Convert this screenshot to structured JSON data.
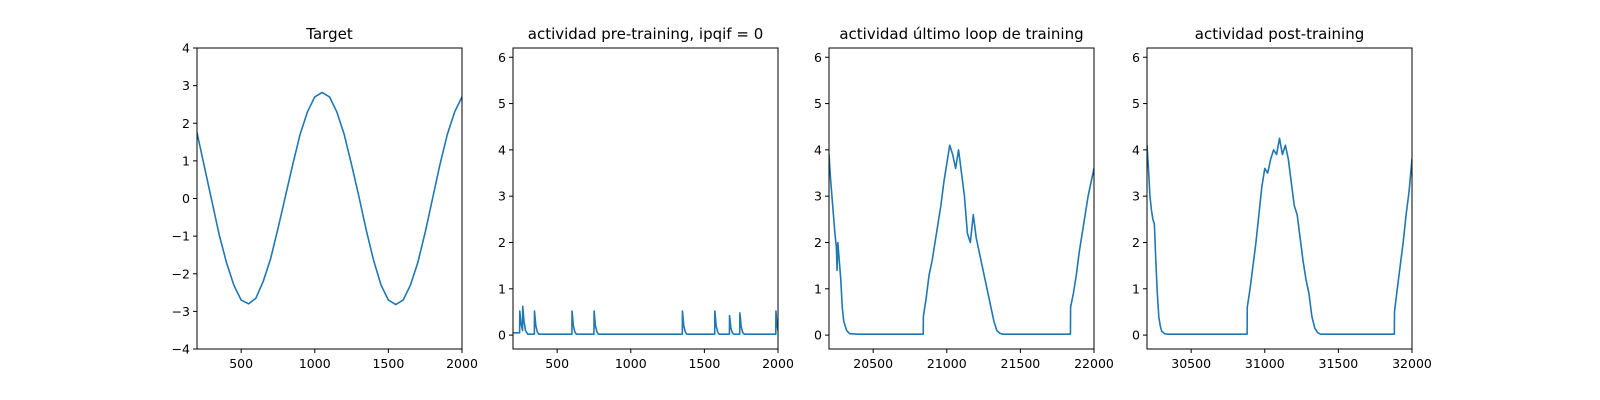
{
  "figure": {
    "line_color": "#1f77b4"
  },
  "chart_data": [
    {
      "type": "line",
      "title": "Target",
      "xlim": [
        200,
        2000
      ],
      "ylim": [
        -4,
        4
      ],
      "xticks": [
        500,
        1000,
        1500,
        2000
      ],
      "xtick_labels": [
        "500",
        "1000",
        "1500",
        "2000"
      ],
      "yticks": [
        -4,
        -3,
        -2,
        -1,
        0,
        1,
        2,
        3,
        4
      ],
      "ytick_labels": [
        "−4",
        "−3",
        "−2",
        "−1",
        "0",
        "1",
        "2",
        "3",
        "4"
      ],
      "series": [
        {
          "x": [
            200,
            250,
            300,
            350,
            400,
            450,
            500,
            550,
            600,
            650,
            700,
            750,
            800,
            850,
            900,
            950,
            1000,
            1050,
            1100,
            1150,
            1200,
            1250,
            1300,
            1350,
            1400,
            1450,
            1500,
            1550,
            1600,
            1650,
            1700,
            1750,
            1800,
            1850,
            1900,
            1950,
            2000
          ],
          "y": [
            1.75,
            0.85,
            -0.05,
            -0.95,
            -1.7,
            -2.3,
            -2.7,
            -2.8,
            -2.65,
            -2.2,
            -1.6,
            -0.8,
            0.05,
            0.9,
            1.7,
            2.3,
            2.7,
            2.82,
            2.7,
            2.3,
            1.7,
            0.9,
            0.05,
            -0.85,
            -1.65,
            -2.3,
            -2.7,
            -2.82,
            -2.7,
            -2.3,
            -1.7,
            -0.9,
            0.0,
            0.9,
            1.7,
            2.3,
            2.7
          ]
        }
      ]
    },
    {
      "type": "line",
      "title": "actividad pre-training, ipqif = 0",
      "xlim": [
        200,
        2000
      ],
      "ylim": [
        -0.3,
        6.2
      ],
      "xticks": [
        500,
        1000,
        1500,
        2000
      ],
      "xtick_labels": [
        "500",
        "1000",
        "1500",
        "2000"
      ],
      "yticks": [
        0,
        1,
        2,
        3,
        4,
        5,
        6
      ],
      "ytick_labels": [
        "0",
        "1",
        "2",
        "3",
        "4",
        "5",
        "6"
      ],
      "series": [
        {
          "x": [
            200,
            245,
            246,
            255,
            265,
            266,
            275,
            285,
            300,
            345,
            346,
            355,
            365,
            375,
            600,
            601,
            610,
            620,
            630,
            750,
            751,
            760,
            770,
            780,
            1350,
            1351,
            1360,
            1370,
            1380,
            1570,
            1571,
            1580,
            1590,
            1600,
            1670,
            1671,
            1680,
            1690,
            1700,
            1740,
            1741,
            1750,
            1760,
            1770,
            1985,
            1986,
            1992,
            2000
          ],
          "y": [
            0.05,
            0.05,
            0.52,
            0.25,
            0.1,
            0.62,
            0.3,
            0.1,
            0.02,
            0.02,
            0.52,
            0.2,
            0.07,
            0.02,
            0.02,
            0.52,
            0.2,
            0.07,
            0.02,
            0.02,
            0.52,
            0.2,
            0.07,
            0.02,
            0.02,
            0.52,
            0.2,
            0.07,
            0.02,
            0.02,
            0.52,
            0.2,
            0.07,
            0.02,
            0.02,
            0.42,
            0.15,
            0.05,
            0.02,
            0.02,
            0.48,
            0.18,
            0.06,
            0.02,
            0.02,
            0.52,
            0.25,
            0.1
          ]
        }
      ]
    },
    {
      "type": "line",
      "title": "actividad último loop de training",
      "xlim": [
        20200,
        22000
      ],
      "ylim": [
        -0.3,
        6.2
      ],
      "xticks": [
        20500,
        21000,
        21500,
        22000
      ],
      "xtick_labels": [
        "20500",
        "21000",
        "21500",
        "22000"
      ],
      "yticks": [
        0,
        1,
        2,
        3,
        4,
        5,
        6
      ],
      "ytick_labels": [
        "0",
        "1",
        "2",
        "3",
        "4",
        "5",
        "6"
      ],
      "series": [
        {
          "x": [
            20200,
            20210,
            20220,
            20230,
            20240,
            20250,
            20255,
            20260,
            20270,
            20280,
            20290,
            20300,
            20320,
            20340,
            20400,
            20840,
            20841,
            20860,
            20880,
            20900,
            20920,
            20940,
            20960,
            20980,
            21000,
            21020,
            21040,
            21060,
            21080,
            21100,
            21120,
            21140,
            21160,
            21180,
            21200,
            21220,
            21240,
            21260,
            21280,
            21300,
            21320,
            21340,
            21360,
            21380,
            21420,
            21840,
            21841,
            21860,
            21880,
            21900,
            21920,
            21940,
            21960,
            21980,
            22000
          ],
          "y": [
            3.9,
            3.4,
            3.0,
            2.6,
            2.2,
            1.9,
            1.4,
            2.0,
            1.6,
            1.2,
            0.6,
            0.3,
            0.1,
            0.03,
            0.02,
            0.02,
            0.4,
            0.8,
            1.3,
            1.6,
            2.0,
            2.4,
            2.8,
            3.3,
            3.7,
            4.1,
            3.9,
            3.6,
            4.0,
            3.5,
            3.0,
            2.2,
            2.0,
            2.6,
            2.1,
            1.8,
            1.5,
            1.2,
            0.9,
            0.6,
            0.3,
            0.1,
            0.04,
            0.02,
            0.02,
            0.02,
            0.6,
            0.9,
            1.3,
            1.8,
            2.2,
            2.6,
            3.0,
            3.3,
            3.6
          ]
        }
      ]
    },
    {
      "type": "line",
      "title": "actividad post-training",
      "xlim": [
        30200,
        32000
      ],
      "ylim": [
        -0.3,
        6.2
      ],
      "xticks": [
        30500,
        31000,
        31500,
        32000
      ],
      "xtick_labels": [
        "30500",
        "31000",
        "31500",
        "32000"
      ],
      "yticks": [
        0,
        1,
        2,
        3,
        4,
        5,
        6
      ],
      "ytick_labels": [
        "0",
        "1",
        "2",
        "3",
        "4",
        "5",
        "6"
      ],
      "series": [
        {
          "x": [
            30200,
            30210,
            30220,
            30230,
            30240,
            30250,
            30260,
            30270,
            30280,
            30290,
            30300,
            30320,
            30340,
            30400,
            30880,
            30881,
            30900,
            30920,
            30940,
            30960,
            30980,
            31000,
            31020,
            31040,
            31060,
            31080,
            31100,
            31120,
            31140,
            31160,
            31180,
            31200,
            31220,
            31240,
            31260,
            31280,
            31300,
            31320,
            31340,
            31360,
            31380,
            31420,
            31880,
            31881,
            31900,
            31920,
            31940,
            31960,
            31980,
            32000
          ],
          "y": [
            4.1,
            3.6,
            3.0,
            2.7,
            2.5,
            2.4,
            1.6,
            0.9,
            0.4,
            0.2,
            0.08,
            0.03,
            0.02,
            0.02,
            0.02,
            0.6,
            1.0,
            1.5,
            2.0,
            2.6,
            3.2,
            3.6,
            3.5,
            3.8,
            4.0,
            3.9,
            4.25,
            3.9,
            4.1,
            3.8,
            3.3,
            2.8,
            2.6,
            2.1,
            1.6,
            1.2,
            0.9,
            0.4,
            0.15,
            0.05,
            0.02,
            0.02,
            0.02,
            0.5,
            1.0,
            1.5,
            2.0,
            2.6,
            3.1,
            3.8
          ]
        }
      ]
    }
  ]
}
